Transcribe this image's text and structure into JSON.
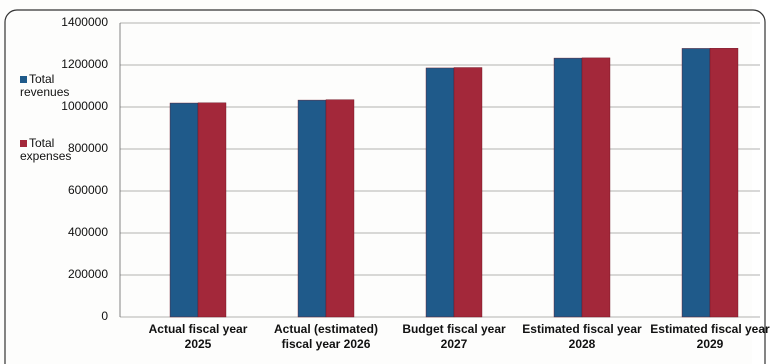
{
  "chart_data": {
    "type": "bar",
    "categories": [
      "Actual fiscal year\n2025",
      "Actual (estimated)\nfiscal year 2026",
      "Budget fiscal year\n2027",
      "Estimated fiscal year\n2028",
      "Estimated fiscal year\n2029"
    ],
    "series": [
      {
        "name": "Total revenues",
        "color": "#1f5a8a",
        "values": [
          1019000,
          1033000,
          1186000,
          1233000,
          1279000
        ]
      },
      {
        "name": "Total expenses",
        "color": "#a3283a",
        "values": [
          1020000,
          1035000,
          1188000,
          1234000,
          1280000
        ]
      }
    ],
    "ylim": [
      0,
      1400000
    ],
    "yticks": [
      0,
      200000,
      400000,
      600000,
      800000,
      1000000,
      1200000,
      1400000
    ],
    "grid": true
  }
}
